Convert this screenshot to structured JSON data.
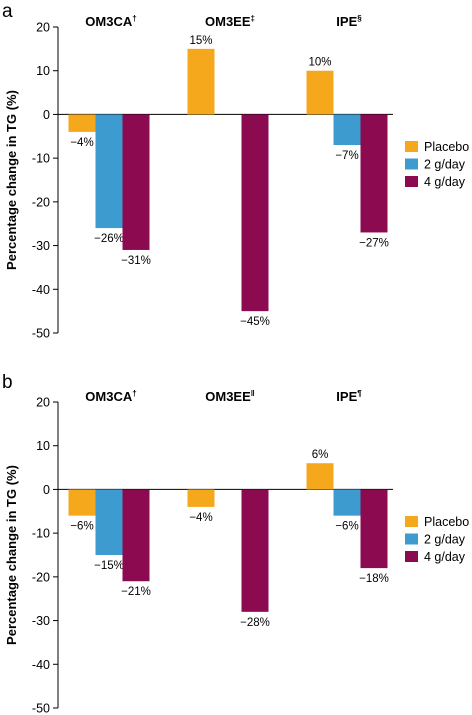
{
  "colors": {
    "Placebo": "#F5A81C",
    "2 g/day": "#3D9BCF",
    "4 g/day": "#8B0A50"
  },
  "chart_data": [
    {
      "panel": "a",
      "type": "bar",
      "ylabel": "Percentage change in TG (%)",
      "ylim": [
        -50,
        20
      ],
      "yticks": [
        20,
        10,
        0,
        -10,
        -20,
        -30,
        -40,
        -50
      ],
      "tick_labels": [
        "20",
        "10",
        "0",
        "-10",
        "-20",
        "-30",
        "-40",
        "-50"
      ],
      "legend_position": "right",
      "categories": [
        {
          "label": "OM3CA",
          "sup": "†"
        },
        {
          "label": "OM3EE",
          "sup": "‡"
        },
        {
          "label": "IPE",
          "sup": "§"
        }
      ],
      "series": [
        {
          "name": "Placebo",
          "values": [
            -4,
            15,
            10
          ],
          "labels": [
            "−4%",
            "15%",
            "10%"
          ]
        },
        {
          "name": "2 g/day",
          "values": [
            -26,
            null,
            -7
          ],
          "labels": [
            "−26%",
            "",
            "−7%"
          ]
        },
        {
          "name": "4 g/day",
          "values": [
            -31,
            -45,
            -27
          ],
          "labels": [
            "−31%",
            "−45%",
            "−27%"
          ]
        }
      ]
    },
    {
      "panel": "b",
      "type": "bar",
      "ylabel": "Percentage change in TG (%)",
      "ylim": [
        -50,
        20
      ],
      "yticks": [
        20,
        10,
        0,
        -10,
        -20,
        -30,
        -40,
        -50
      ],
      "tick_labels": [
        "20",
        "10",
        "0",
        "-10",
        "-20",
        "-30",
        "-40",
        "-50"
      ],
      "legend_position": "right",
      "categories": [
        {
          "label": "OM3CA",
          "sup": "†"
        },
        {
          "label": "OM3EE",
          "sup": "ǁ"
        },
        {
          "label": "IPE",
          "sup": "¶"
        }
      ],
      "series": [
        {
          "name": "Placebo",
          "values": [
            -6,
            -4,
            6
          ],
          "labels": [
            "−6%",
            "−4%",
            "6%"
          ]
        },
        {
          "name": "2 g/day",
          "values": [
            -15,
            null,
            -6
          ],
          "labels": [
            "−15%",
            "",
            "−6%"
          ]
        },
        {
          "name": "4 g/day",
          "values": [
            -21,
            -28,
            -18
          ],
          "labels": [
            "−21%",
            "−28%",
            "−18%"
          ]
        }
      ]
    }
  ]
}
